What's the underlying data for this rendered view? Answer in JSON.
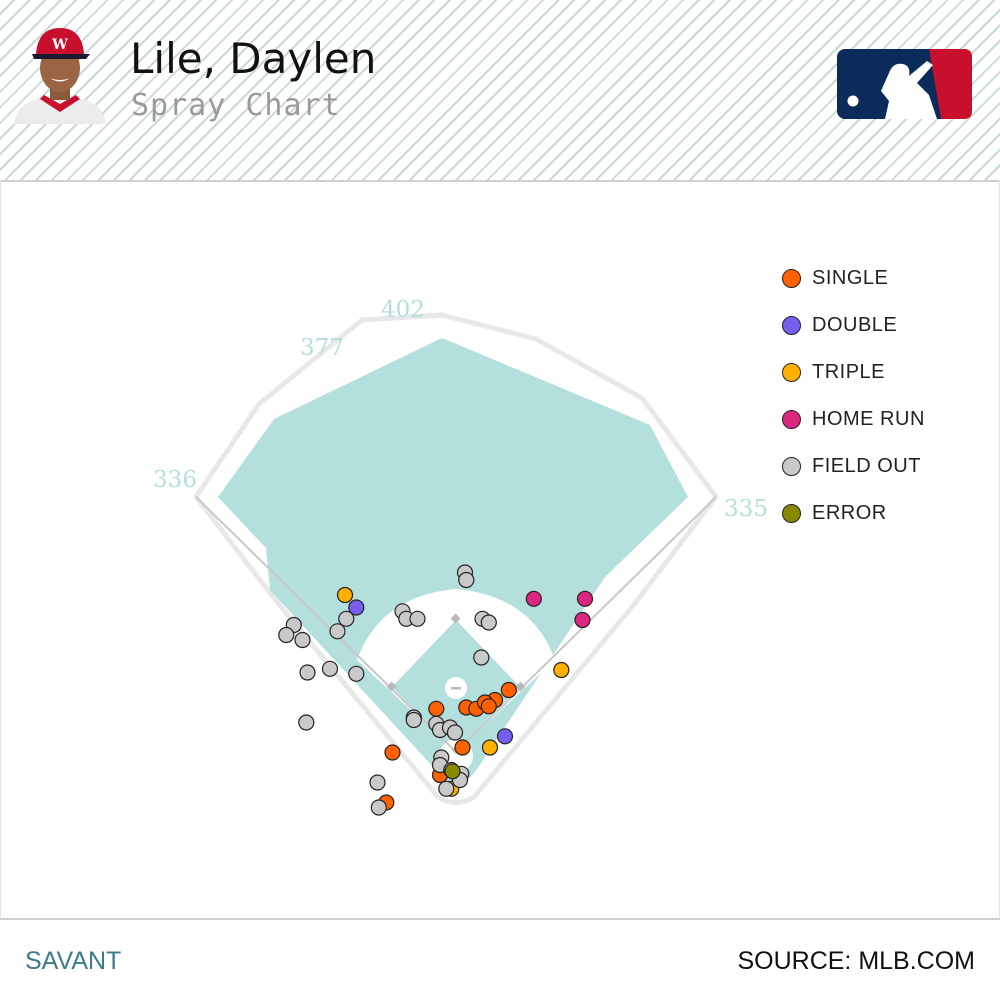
{
  "header": {
    "player_name": "Lile, Daylen",
    "subtitle": "Spray Chart"
  },
  "footer": {
    "left_label": "SAVANT",
    "right_label": "SOURCE: MLB.COM"
  },
  "colors": {
    "single": "#fe6100",
    "double": "#785ef0",
    "triple": "#ffb000",
    "home_run": "#dc267f",
    "field_out": "#c9c9c9",
    "error": "#8a8a00",
    "field": "#b3dfdc"
  },
  "chart_data": {
    "type": "scatter",
    "title": "Spray Chart",
    "fence_distances": [
      "336",
      "377",
      "402",
      "335"
    ],
    "legend": [
      {
        "key": "single",
        "label": "SINGLE"
      },
      {
        "key": "double",
        "label": "DOUBLE"
      },
      {
        "key": "triple",
        "label": "TRIPLE"
      },
      {
        "key": "home_run",
        "label": "HOME RUN"
      },
      {
        "key": "field_out",
        "label": "FIELD OUT"
      },
      {
        "key": "error",
        "label": "ERROR"
      }
    ],
    "xlim": [
      0,
      250
    ],
    "ylim": [
      0,
      250
    ],
    "y_inverted": true,
    "points": [
      {
        "x": 136.5,
        "y": 111,
        "event": "single"
      },
      {
        "x": 148,
        "y": 108,
        "event": "single"
      },
      {
        "x": 140.5,
        "y": 111.5,
        "event": "single"
      },
      {
        "x": 144,
        "y": 109,
        "event": "single"
      },
      {
        "x": 145.5,
        "y": 110.5,
        "event": "single"
      },
      {
        "x": 153.5,
        "y": 104,
        "event": "single"
      },
      {
        "x": 124.5,
        "y": 111.5,
        "event": "single"
      },
      {
        "x": 135,
        "y": 127,
        "event": "single"
      },
      {
        "x": 107,
        "y": 129,
        "event": "single"
      },
      {
        "x": 126,
        "y": 138,
        "event": "single"
      },
      {
        "x": 104.5,
        "y": 149,
        "event": "single"
      },
      {
        "x": 92.5,
        "y": 71,
        "event": "double"
      },
      {
        "x": 152,
        "y": 122.5,
        "event": "double"
      },
      {
        "x": 88,
        "y": 66,
        "event": "triple"
      },
      {
        "x": 174.5,
        "y": 96,
        "event": "triple"
      },
      {
        "x": 146,
        "y": 127,
        "event": "triple"
      },
      {
        "x": 130.5,
        "y": 143.5,
        "event": "triple"
      },
      {
        "x": 163.5,
        "y": 67.5,
        "event": "home_run"
      },
      {
        "x": 184,
        "y": 67.5,
        "event": "home_run"
      },
      {
        "x": 183,
        "y": 76,
        "event": "home_run"
      },
      {
        "x": 136,
        "y": 57,
        "event": "field_out"
      },
      {
        "x": 136.5,
        "y": 60,
        "event": "field_out"
      },
      {
        "x": 111,
        "y": 72.5,
        "event": "field_out"
      },
      {
        "x": 112.5,
        "y": 75.5,
        "event": "field_out"
      },
      {
        "x": 117,
        "y": 75.5,
        "event": "field_out"
      },
      {
        "x": 143,
        "y": 75.5,
        "event": "field_out"
      },
      {
        "x": 145.5,
        "y": 77,
        "event": "field_out"
      },
      {
        "x": 67.5,
        "y": 78,
        "event": "field_out"
      },
      {
        "x": 64.5,
        "y": 82,
        "event": "field_out"
      },
      {
        "x": 71,
        "y": 84,
        "event": "field_out"
      },
      {
        "x": 88.5,
        "y": 75.5,
        "event": "field_out"
      },
      {
        "x": 85,
        "y": 80.5,
        "event": "field_out"
      },
      {
        "x": 142.5,
        "y": 91,
        "event": "field_out"
      },
      {
        "x": 73,
        "y": 97,
        "event": "field_out"
      },
      {
        "x": 82,
        "y": 95.5,
        "event": "field_out"
      },
      {
        "x": 92.5,
        "y": 97.5,
        "event": "field_out"
      },
      {
        "x": 72.5,
        "y": 117,
        "event": "field_out"
      },
      {
        "x": 115.5,
        "y": 115,
        "event": "field_out"
      },
      {
        "x": 115.5,
        "y": 116,
        "event": "field_out"
      },
      {
        "x": 124.5,
        "y": 117.5,
        "event": "field_out"
      },
      {
        "x": 126,
        "y": 120,
        "event": "field_out"
      },
      {
        "x": 130,
        "y": 119,
        "event": "field_out"
      },
      {
        "x": 132,
        "y": 121,
        "event": "field_out"
      },
      {
        "x": 126.5,
        "y": 131,
        "event": "field_out"
      },
      {
        "x": 126,
        "y": 134,
        "event": "field_out"
      },
      {
        "x": 130.5,
        "y": 136,
        "event": "field_out"
      },
      {
        "x": 134.5,
        "y": 137.5,
        "event": "field_out"
      },
      {
        "x": 134,
        "y": 140,
        "event": "field_out"
      },
      {
        "x": 101,
        "y": 141,
        "event": "field_out"
      },
      {
        "x": 128.5,
        "y": 143.5,
        "event": "field_out"
      },
      {
        "x": 101.5,
        "y": 151,
        "event": "field_out"
      },
      {
        "x": 131,
        "y": 136.5,
        "event": "error"
      }
    ]
  }
}
